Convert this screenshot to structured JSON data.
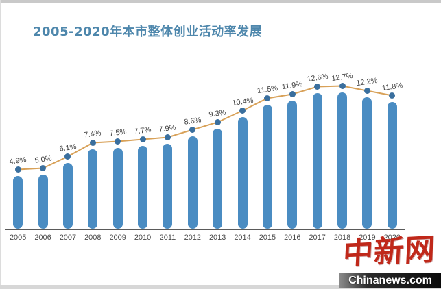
{
  "chart_data": {
    "type": "bar",
    "title": "2005-2020年本市整体创业活动率发展",
    "categories": [
      "2005",
      "2006",
      "2007",
      "2008",
      "2009",
      "2010",
      "2011",
      "2012",
      "2013",
      "2014",
      "2015",
      "2016",
      "2017",
      "2018",
      "2019",
      "2020"
    ],
    "values": [
      4.9,
      5.0,
      6.1,
      7.4,
      7.5,
      7.7,
      7.9,
      8.6,
      9.3,
      10.4,
      11.5,
      11.9,
      12.6,
      12.7,
      12.2,
      11.8
    ],
    "data_labels": [
      "4.9%",
      "5.0%",
      "6.1%",
      "7.4%",
      "7.5%",
      "7.7%",
      "7.9%",
      "8.6%",
      "9.3%",
      "10.4%",
      "11.5%",
      "11.9%",
      "12.6%",
      "12.7%",
      "12.2%",
      "11.8%"
    ],
    "xlabel": "",
    "ylabel": "",
    "ylim": [
      0,
      14
    ],
    "grid": "off",
    "legend": "none",
    "line_overlay": true,
    "colors": {
      "bar": "#4a8cc2",
      "line": "#d8a158",
      "dot": "#3a6f9e",
      "data_label": "#3f3f3f",
      "axis_line": "#5a5a5a",
      "tick_label": "#4a4a4a",
      "title": "#4e87ac"
    }
  },
  "watermark": {
    "logo_text": "中新网",
    "site_text": "Chinanews.com",
    "logo_color": "#c0281a",
    "bar_background": "#1a1a1a",
    "site_text_color": "#ffffff"
  }
}
